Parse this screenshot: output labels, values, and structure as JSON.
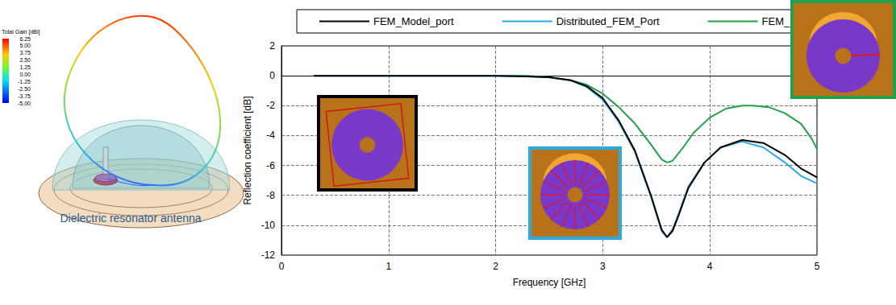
{
  "chart_data": {
    "type": "line",
    "xlabel": "Frequency [GHz]",
    "ylabel": "Reflection coefficient [dB]",
    "xlim": [
      0,
      5
    ],
    "xticks": [
      0,
      1,
      2,
      3,
      4,
      5
    ],
    "ylim": [
      -12,
      2
    ],
    "yticks": [
      -12,
      -10,
      -8,
      -6,
      -4,
      -2,
      0,
      2
    ],
    "grid": true,
    "legend": "top",
    "series": [
      {
        "name": "FEM_Model_port",
        "color": "#000000",
        "x": [
          0.3,
          1,
          1.5,
          2,
          2.3,
          2.5,
          2.7,
          2.85,
          3,
          3.15,
          3.3,
          3.45,
          3.55,
          3.6,
          3.65,
          3.7,
          3.8,
          3.95,
          4.1,
          4.3,
          4.5,
          4.7,
          4.85,
          5
        ],
        "values": [
          0,
          0,
          0,
          0,
          -0.05,
          -0.1,
          -0.3,
          -0.7,
          -1.5,
          -3,
          -5,
          -8,
          -10.3,
          -10.8,
          -10.4,
          -9.5,
          -7.5,
          -5.8,
          -4.8,
          -4.3,
          -4.5,
          -5.3,
          -6.2,
          -6.8
        ]
      },
      {
        "name": "Distributed_FEM_Port",
        "color": "#29abe2",
        "x": [
          0.3,
          1,
          1.5,
          2,
          2.3,
          2.5,
          2.7,
          2.85,
          3,
          3.15,
          3.3,
          3.45,
          3.55,
          3.6,
          3.65,
          3.7,
          3.8,
          3.95,
          4.1,
          4.3,
          4.5,
          4.7,
          4.85,
          5
        ],
        "values": [
          0,
          0,
          0,
          0,
          -0.05,
          -0.1,
          -0.3,
          -0.75,
          -1.6,
          -3.1,
          -5.1,
          -8.1,
          -10.4,
          -10.8,
          -10.3,
          -9.4,
          -7.4,
          -5.8,
          -4.8,
          -4.4,
          -4.8,
          -5.8,
          -6.7,
          -7.2
        ]
      },
      {
        "name": "FEM_Line_Port",
        "color": "#22a04b",
        "x": [
          2.05,
          2.3,
          2.5,
          2.7,
          2.85,
          3,
          3.15,
          3.3,
          3.45,
          3.55,
          3.6,
          3.65,
          3.75,
          3.85,
          4,
          4.15,
          4.3,
          4.4,
          4.55,
          4.7,
          4.85,
          4.95,
          5
        ],
        "values": [
          0,
          0,
          -0.1,
          -0.3,
          -0.6,
          -1.2,
          -2.1,
          -3.2,
          -4.6,
          -5.6,
          -5.8,
          -5.7,
          -4.8,
          -3.8,
          -2.8,
          -2.2,
          -2.0,
          -2.0,
          -2.1,
          -2.5,
          -3.2,
          -4.2,
          -4.9
        ]
      }
    ],
    "annotations": [
      "Dielectric resonator antenna"
    ],
    "colorbar": {
      "title": "Total Gain [dBi]",
      "range": [
        -5,
        6.25
      ],
      "ticks": [
        6.25,
        {
          "value": 5,
          "label": "5.00"
        },
        3.75,
        {
          "value": 2.5,
          "label": "2.50"
        },
        1.25,
        {
          "value": 0,
          "label": "0.00"
        },
        -1.25,
        {
          "value": -2.5,
          "label": "-2.50"
        },
        -3.75,
        {
          "value": -5,
          "label": "-5.00"
        }
      ]
    }
  }
}
